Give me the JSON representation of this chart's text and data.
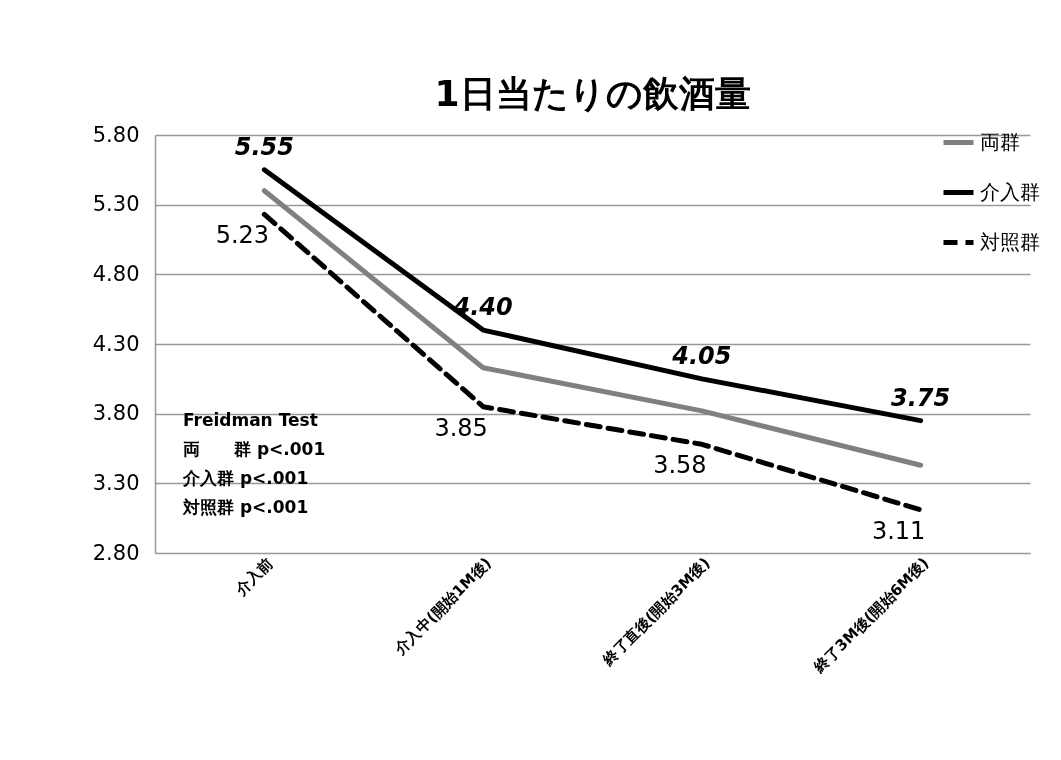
{
  "chart_data": {
    "type": "line",
    "title": "1日当たりの飲酒量",
    "categories": [
      "介入前",
      "介入中(開始1M後)",
      "終了直後(開始3M後)",
      "終了3M後(開始6M後)"
    ],
    "series": [
      {
        "name": "両群",
        "color": "#808080",
        "values": [
          5.4,
          4.13,
          3.82,
          3.43
        ]
      },
      {
        "name": "介入群",
        "color": "#000000",
        "values": [
          5.55,
          4.4,
          4.05,
          3.75
        ],
        "value_labels": [
          "5.55",
          "4.40",
          "4.05",
          "3.75"
        ]
      },
      {
        "name": "対照群",
        "color": "#000000",
        "line_style": "dashed",
        "values": [
          5.23,
          3.85,
          3.58,
          3.11
        ],
        "value_labels": [
          "5.23",
          "3.85",
          "3.58",
          "3.11"
        ]
      }
    ],
    "ylim": [
      2.8,
      5.8
    ],
    "yticks": [
      {
        "value": 2.8,
        "label": "2.80"
      },
      {
        "value": 3.3,
        "label": "3.30"
      },
      {
        "value": 3.8,
        "label": "3.80"
      },
      {
        "value": 4.3,
        "label": "4.30"
      },
      {
        "value": 4.8,
        "label": "4.80"
      },
      {
        "value": 5.3,
        "label": "5.30"
      },
      {
        "value": 5.8,
        "label": "5.80"
      }
    ],
    "grid": "y",
    "legend": "top right",
    "annotations": [
      "Freidman Test",
      "両　　群 p<.001",
      "介入群 p<.001",
      "対照群 p<.001"
    ]
  }
}
